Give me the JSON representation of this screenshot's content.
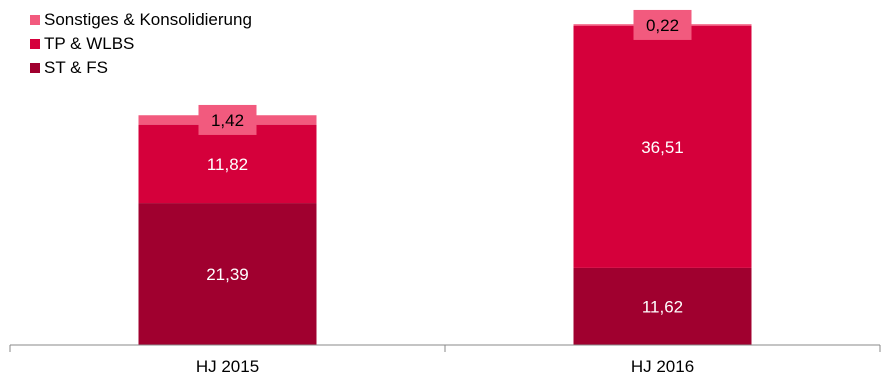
{
  "chart_data": {
    "type": "bar",
    "stacked": true,
    "categories": [
      "HJ 2015",
      "HJ 2016"
    ],
    "series": [
      {
        "name": "ST & FS",
        "values": [
          21.39,
          11.62
        ],
        "labels": [
          "21,39",
          "11,62"
        ],
        "color": "#a0002f"
      },
      {
        "name": "TP & WLBS",
        "values": [
          11.82,
          36.51
        ],
        "labels": [
          "11,82",
          "36,51"
        ],
        "color": "#d5003b"
      },
      {
        "name": "Sonstiges & Konsolidierung",
        "values": [
          1.42,
          0.22
        ],
        "labels": [
          "1,42",
          "0,22"
        ],
        "color": "#f25a7e"
      }
    ],
    "legend_order": [
      "Sonstiges & Konsolidierung",
      "TP & WLBS",
      "ST & FS"
    ],
    "legend_position": "top-left",
    "grid": false,
    "ylim": [
      0,
      52
    ]
  }
}
